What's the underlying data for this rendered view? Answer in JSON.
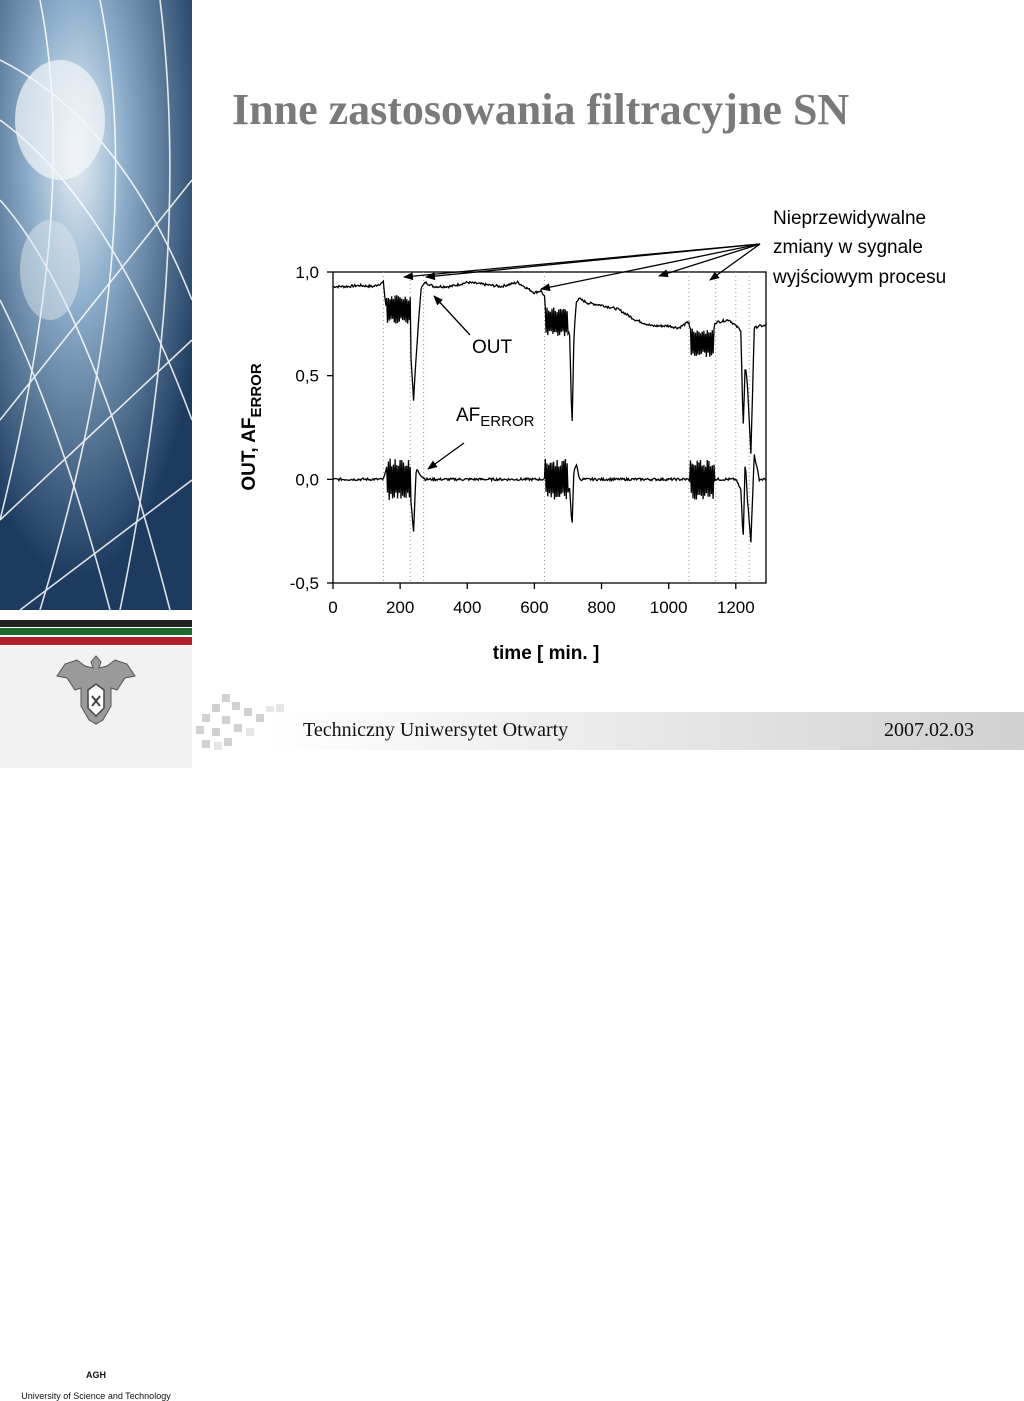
{
  "slide": {
    "title": "Inne zastosowania filtracyjne SN",
    "footer_org": "Techniczny Uniwersytet Otwarty",
    "footer_date": "2007.02.03",
    "logo_name": "AGH",
    "logo_fullname": "University of Science and Technology"
  },
  "chart_data": {
    "type": "line",
    "xlabel": "time [ min. ]",
    "ylabel": "OUT, AF",
    "ylabel_sub": "ERROR",
    "xlim": [
      0,
      1290
    ],
    "ylim": [
      -0.5,
      1.0
    ],
    "xticks": [
      "0",
      "200",
      "400",
      "600",
      "800",
      "1000",
      "1200"
    ],
    "xtick_values": [
      0,
      200,
      400,
      600,
      800,
      1000,
      1200
    ],
    "yticks": [
      "-0,5",
      "0,0",
      "0,5",
      "1,0"
    ],
    "ytick_values": [
      -0.5,
      0.0,
      0.5,
      1.0
    ],
    "grid": "dotted vertical lines at disturbance times",
    "event_lines_x": [
      150,
      230,
      270,
      630,
      1060,
      1140,
      1200,
      1240
    ],
    "annotations": {
      "out_label": "OUT",
      "af_label": "AF",
      "af_sub": "ERROR",
      "note_line1": "Nieprzewidywalne",
      "note_line2": "zmiany w sygnale",
      "note_line3": "wyjściowym procesu"
    },
    "series": [
      {
        "name": "OUT",
        "x": [
          0,
          40,
          80,
          120,
          150,
          160,
          175,
          200,
          215,
          225,
          232,
          240,
          248,
          262,
          275,
          300,
          350,
          400,
          450,
          500,
          550,
          600,
          620,
          630,
          640,
          660,
          690,
          705,
          712,
          718,
          725,
          735,
          760,
          800,
          850,
          900,
          950,
          1000,
          1030,
          1060,
          1070,
          1090,
          1100,
          1110,
          1120,
          1150,
          1180,
          1200,
          1215,
          1222,
          1228,
          1235,
          1245,
          1255,
          1270,
          1290
        ],
        "y": [
          0.93,
          0.93,
          0.935,
          0.93,
          0.95,
          0.8,
          0.77,
          0.82,
          0.9,
          0.92,
          0.6,
          0.38,
          0.6,
          0.92,
          0.95,
          0.93,
          0.93,
          0.95,
          0.94,
          0.93,
          0.95,
          0.9,
          0.91,
          0.88,
          0.75,
          0.75,
          0.75,
          0.7,
          0.24,
          0.7,
          0.86,
          0.87,
          0.85,
          0.84,
          0.82,
          0.77,
          0.74,
          0.74,
          0.73,
          0.76,
          0.66,
          0.64,
          0.66,
          0.73,
          0.75,
          0.76,
          0.77,
          0.74,
          0.72,
          0.24,
          0.55,
          0.45,
          0.12,
          0.73,
          0.74,
          0.74
        ]
      },
      {
        "name": "AF",
        "x": [
          0,
          40,
          80,
          120,
          150,
          160,
          175,
          200,
          215,
          225,
          232,
          240,
          248,
          262,
          275,
          300,
          350,
          400,
          450,
          500,
          550,
          600,
          620,
          630,
          640,
          660,
          690,
          705,
          712,
          718,
          725,
          735,
          760,
          800,
          850,
          900,
          950,
          1000,
          1030,
          1060,
          1070,
          1090,
          1100,
          1110,
          1120,
          1150,
          1180,
          1200,
          1215,
          1222,
          1228,
          1235,
          1245,
          1255,
          1270,
          1290
        ],
        "y": [
          0.0,
          0.0,
          0.0,
          0.0,
          0.0,
          0.05,
          -0.05,
          0.05,
          0.0,
          0.08,
          -0.1,
          -0.25,
          0.05,
          0.02,
          0.0,
          0.0,
          0.0,
          0.0,
          0.0,
          0.0,
          0.0,
          0.0,
          0.0,
          0.0,
          -0.05,
          0.05,
          0.0,
          -0.05,
          -0.23,
          0.05,
          0.07,
          0.0,
          0.0,
          0.0,
          0.0,
          0.0,
          0.0,
          0.0,
          0.0,
          0.0,
          -0.05,
          0.05,
          0.0,
          0.02,
          0.0,
          0.0,
          0.0,
          0.0,
          -0.05,
          -0.3,
          0.1,
          -0.1,
          -0.3,
          0.12,
          0.0,
          0.0
        ]
      }
    ],
    "oscillation_bursts": [
      {
        "series": "OUT",
        "x_start": 160,
        "x_end": 230,
        "center": 0.82,
        "amplitude": 0.07
      },
      {
        "series": "AF",
        "x_start": 160,
        "x_end": 230,
        "center": 0.0,
        "amplitude": 0.1
      },
      {
        "series": "OUT",
        "x_start": 632,
        "x_end": 700,
        "center": 0.76,
        "amplitude": 0.07
      },
      {
        "series": "AF",
        "x_start": 632,
        "x_end": 700,
        "center": 0.0,
        "amplitude": 0.1
      },
      {
        "series": "OUT",
        "x_start": 1065,
        "x_end": 1135,
        "center": 0.66,
        "amplitude": 0.07
      },
      {
        "series": "AF",
        "x_start": 1065,
        "x_end": 1135,
        "center": 0.0,
        "amplitude": 0.1
      }
    ]
  }
}
